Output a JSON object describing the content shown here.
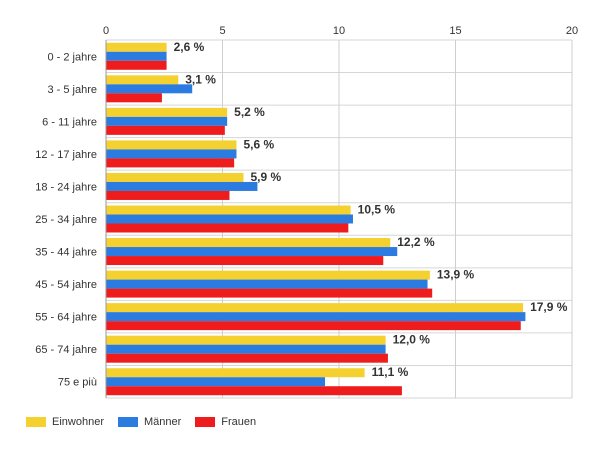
{
  "chart_data": {
    "type": "bar",
    "orientation": "horizontal",
    "categories": [
      "0 - 2 jahre",
      "3 - 5 jahre",
      "6 - 11 jahre",
      "12 - 17 jahre",
      "18 - 24 jahre",
      "25 - 34 jahre",
      "35 - 44 jahre",
      "45 - 54 jahre",
      "55 - 64 jahre",
      "65 - 74 jahre",
      "75 e più"
    ],
    "series": [
      {
        "name": "Einwohner",
        "color": "#f5d130",
        "values": [
          2.6,
          3.1,
          5.2,
          5.6,
          5.9,
          10.5,
          12.2,
          13.9,
          17.9,
          12.0,
          11.1
        ]
      },
      {
        "name": "Männer",
        "color": "#2c7be0",
        "values": [
          2.6,
          3.7,
          5.2,
          5.6,
          6.5,
          10.6,
          12.5,
          13.8,
          18.0,
          12.0,
          9.4
        ]
      },
      {
        "name": "Frauen",
        "color": "#ee1c1c",
        "values": [
          2.6,
          2.4,
          5.1,
          5.5,
          5.3,
          10.4,
          11.9,
          14.0,
          17.8,
          12.1,
          12.7
        ]
      }
    ],
    "data_labels": [
      "2,6 %",
      "3,1 %",
      "5,2 %",
      "5,6 %",
      "5,9 %",
      "10,5 %",
      "12,2 %",
      "13,9 %",
      "17,9 %",
      "12,0 %",
      "11,1 %"
    ],
    "x_ticks": [
      "0",
      "5",
      "10",
      "15",
      "20"
    ],
    "xlim": [
      0,
      20
    ],
    "grid": true,
    "legend_position": "bottom-left",
    "title": "",
    "xlabel": "",
    "ylabel": ""
  }
}
